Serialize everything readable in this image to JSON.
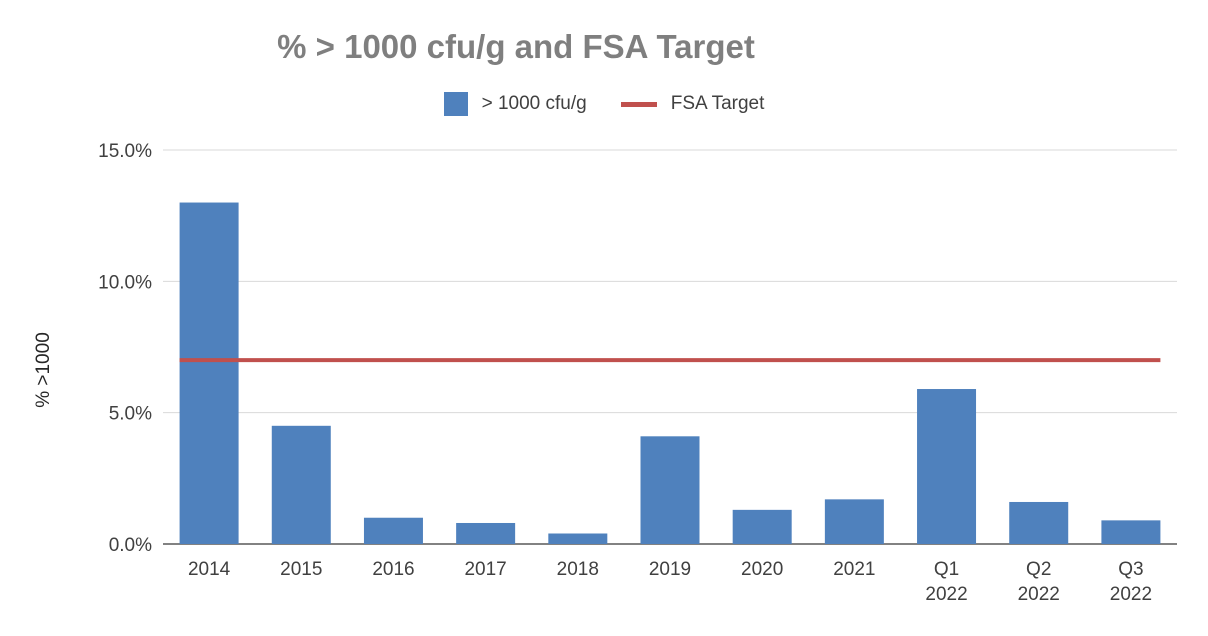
{
  "chart_data": {
    "type": "bar",
    "title": "% > 1000 cfu/g and FSA Target",
    "ylabel": "% >1000",
    "xlabel": "",
    "categories": [
      [
        "2014"
      ],
      [
        "2015"
      ],
      [
        "2016"
      ],
      [
        "2017"
      ],
      [
        "2018"
      ],
      [
        "2019"
      ],
      [
        "2020"
      ],
      [
        "2021"
      ],
      [
        "Q1",
        "2022"
      ],
      [
        "Q2",
        "2022"
      ],
      [
        "Q3",
        "2022"
      ]
    ],
    "series": [
      {
        "name": "> 1000 cfu/g",
        "type": "bar",
        "color": "#4f81bd",
        "values": [
          13.0,
          4.5,
          1.0,
          0.8,
          0.4,
          4.1,
          1.3,
          1.7,
          5.9,
          1.6,
          0.9
        ]
      },
      {
        "name": "FSA Target",
        "type": "line",
        "color": "#c0504d",
        "values": [
          7.0,
          7.0,
          7.0,
          7.0,
          7.0,
          7.0,
          7.0,
          7.0,
          7.0,
          7.0,
          7.0
        ]
      }
    ],
    "ylim": [
      0,
      15
    ],
    "yticks": [
      0,
      5,
      10,
      15
    ],
    "ytick_labels": [
      "0.0%",
      "5.0%",
      "10.0%",
      "15.0%"
    ],
    "grid": true,
    "legend_position": "top-center"
  }
}
